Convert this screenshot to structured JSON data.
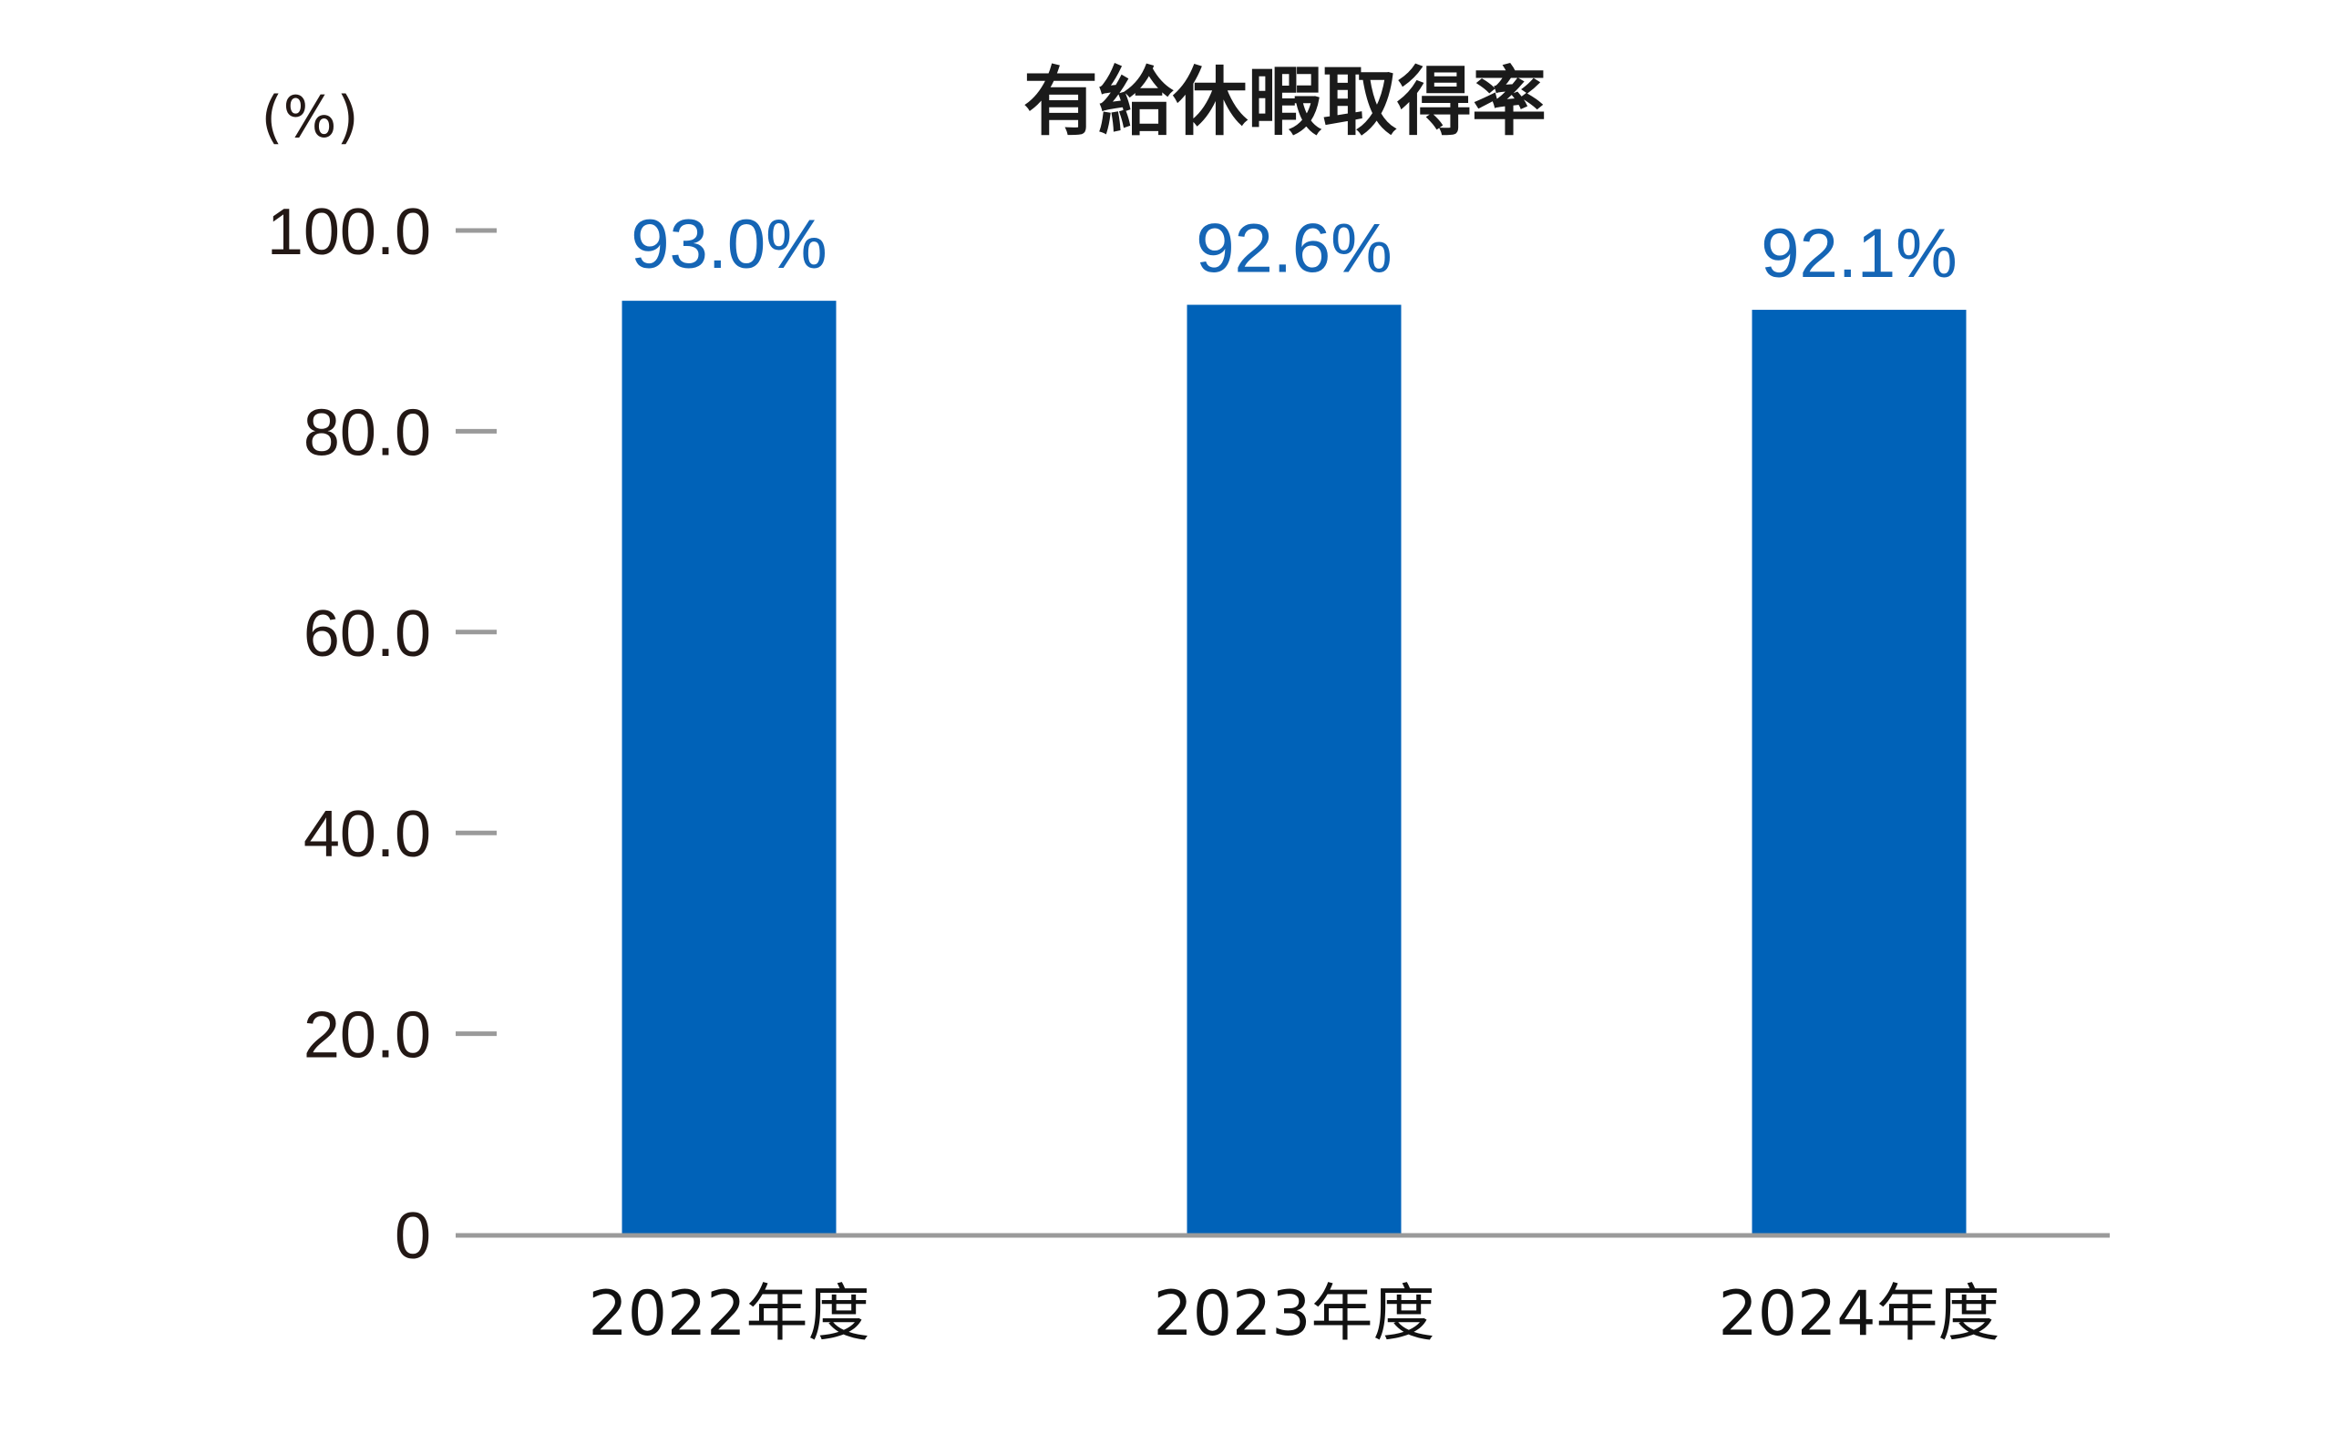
{
  "chart_data": {
    "type": "bar",
    "title": "有給休暇取得率",
    "ylabel": "(%)",
    "xlabel": "",
    "categories": [
      "2022年度",
      "2023年度",
      "2024年度"
    ],
    "values": [
      93.0,
      92.6,
      92.1
    ],
    "value_labels": [
      "93.0%",
      "92.6%",
      "92.1%"
    ],
    "ylim": [
      0,
      100
    ],
    "yticks": [
      0,
      20,
      40,
      60,
      80,
      100
    ],
    "ytick_labels": [
      "0",
      "20.0",
      "40.0",
      "60.0",
      "80.0",
      "100.0"
    ],
    "grid": false,
    "legend": "none"
  },
  "colors": {
    "bar": "#0062b8",
    "value_label": "#1565b5",
    "axis": "#9a9a9a",
    "text": "#231815"
  }
}
